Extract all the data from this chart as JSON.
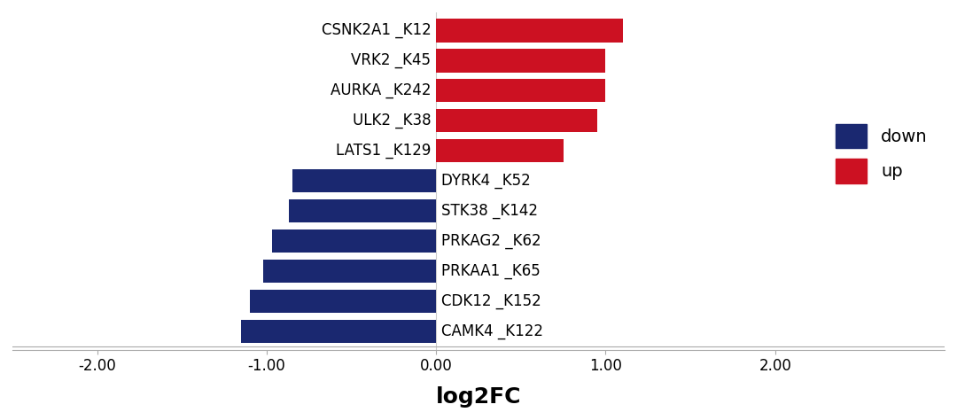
{
  "up_labels": [
    "CSNK2A1 _K12",
    "VRK2 _K45",
    "AURKA _K242",
    "ULK2 _K38",
    "LATS1 _K129"
  ],
  "up_values": [
    1.1,
    1.0,
    1.0,
    0.95,
    0.75
  ],
  "down_labels": [
    "DYRK4 _K52",
    "STK38 _K142",
    "PRKAG2 _K62",
    "PRKAA1 _K65",
    "CDK12 _K152",
    "CAMK4 _K122"
  ],
  "down_values": [
    -0.85,
    -0.87,
    -0.97,
    -1.02,
    -1.1,
    -1.15
  ],
  "up_color": "#cc1122",
  "down_color": "#1a2870",
  "xlabel": "log2FC",
  "xlim": [
    -2.5,
    3.0
  ],
  "xticks": [
    -2.0,
    -1.0,
    0.0,
    1.0,
    2.0
  ],
  "xtick_labels": [
    "-2.00",
    "-1.00",
    "0.00",
    "1.00",
    "2.00"
  ],
  "legend_labels": [
    "down",
    "up"
  ],
  "legend_colors": [
    "#1a2870",
    "#cc1122"
  ],
  "bar_height": 0.78,
  "background_color": "#ffffff",
  "figsize": [
    10.8,
    4.74
  ],
  "dpi": 100,
  "label_fontsize": 12,
  "xlabel_fontsize": 18,
  "legend_fontsize": 14
}
